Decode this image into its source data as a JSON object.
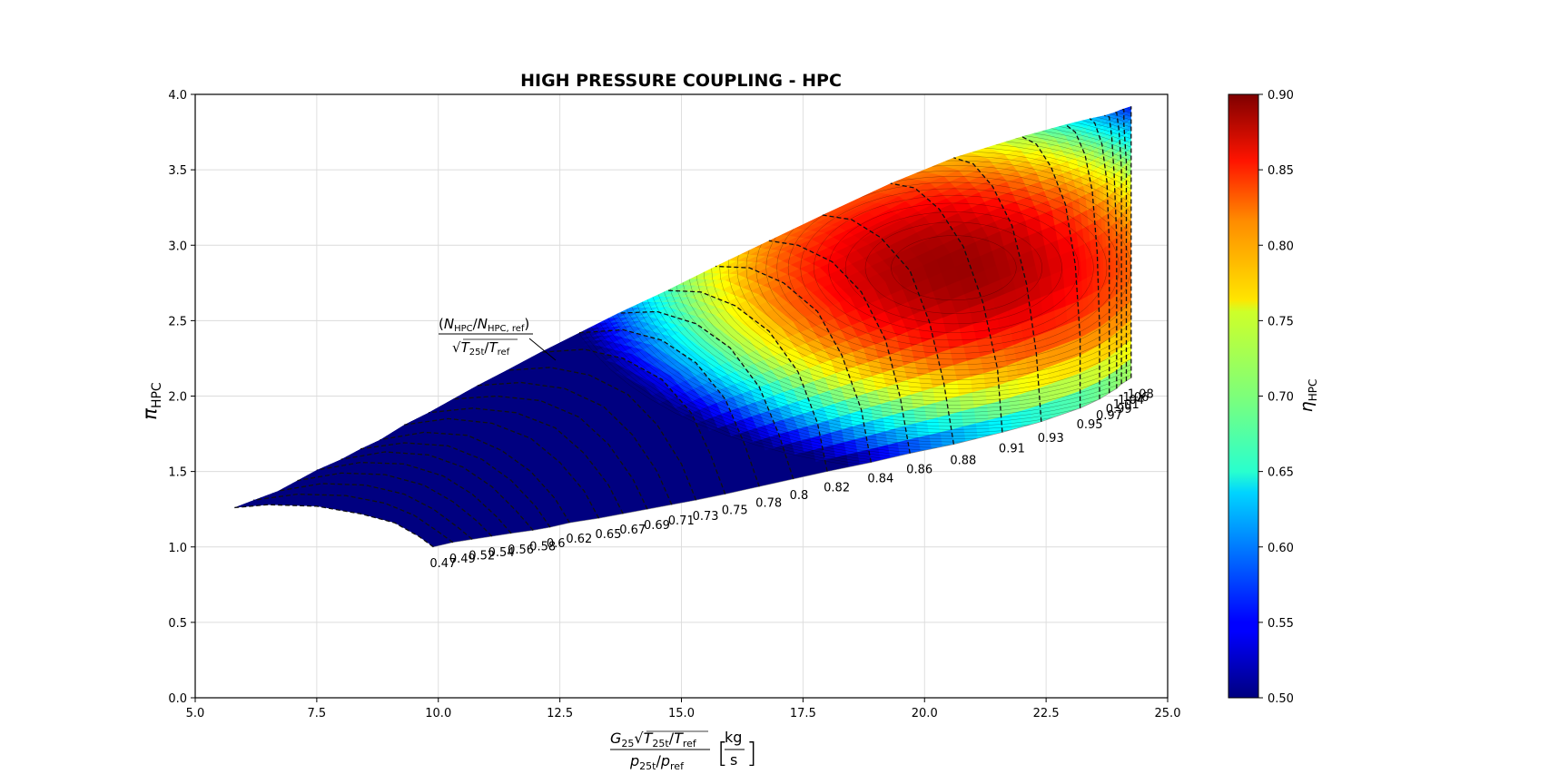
{
  "chart_data": {
    "type": "contour",
    "title": "HIGH PRESSURE COUPLING - HPC",
    "xlabel": {
      "numerator": "G25√(T25t/Tref)",
      "denominator": "p25t/pref",
      "unit_numerator": "kg",
      "unit_denominator": "s"
    },
    "ylabel": "πHPC",
    "xlim": [
      5.0,
      25.0
    ],
    "ylim": [
      0.0,
      4.0
    ],
    "x_ticks": [
      "5.0",
      "7.5",
      "10.0",
      "12.5",
      "15.0",
      "17.5",
      "20.0",
      "22.5",
      "25.0"
    ],
    "y_ticks": [
      "0.0",
      "0.5",
      "1.0",
      "1.5",
      "2.0",
      "2.5",
      "3.0",
      "3.5",
      "4.0"
    ],
    "grid": true,
    "speed_line_annotation": {
      "numerator": "(NHPC/NHPC,ref)",
      "denominator": "√(T25t/Tref)"
    },
    "speed_lines": [
      {
        "label": "0.47",
        "x": [
          9.9,
          9.6,
          9.1,
          8.4,
          7.5,
          6.5,
          5.8
        ],
        "y": [
          1.0,
          1.07,
          1.16,
          1.22,
          1.27,
          1.28,
          1.26
        ]
      },
      {
        "label": "0.49",
        "x": [
          10.3,
          10.0,
          9.5,
          8.9,
          8.1,
          7.1,
          6.2
        ],
        "y": [
          1.03,
          1.1,
          1.21,
          1.29,
          1.34,
          1.35,
          1.31
        ]
      },
      {
        "label": "0.52",
        "x": [
          10.7,
          10.4,
          9.9,
          9.3,
          8.5,
          7.6,
          6.7
        ],
        "y": [
          1.05,
          1.13,
          1.25,
          1.35,
          1.41,
          1.42,
          1.37
        ]
      },
      {
        "label": "0.54",
        "x": [
          11.1,
          10.8,
          10.3,
          9.7,
          8.9,
          8.0,
          7.1
        ],
        "y": [
          1.07,
          1.17,
          1.3,
          1.41,
          1.48,
          1.49,
          1.44
        ]
      },
      {
        "label": "0.56",
        "x": [
          11.5,
          11.2,
          10.7,
          10.1,
          9.3,
          8.4,
          7.5
        ],
        "y": [
          1.09,
          1.2,
          1.35,
          1.47,
          1.55,
          1.56,
          1.51
        ]
      },
      {
        "label": "0.58",
        "x": [
          11.95,
          11.6,
          11.1,
          10.5,
          9.8,
          8.9,
          8.0
        ],
        "y": [
          1.11,
          1.24,
          1.4,
          1.53,
          1.61,
          1.63,
          1.58
        ]
      },
      {
        "label": "0.6",
        "x": [
          12.3,
          12.0,
          11.5,
          10.9,
          10.2,
          9.3,
          8.4
        ],
        "y": [
          1.13,
          1.27,
          1.44,
          1.58,
          1.67,
          1.69,
          1.65
        ]
      },
      {
        "label": "0.62",
        "x": [
          12.7,
          12.4,
          11.9,
          11.3,
          10.6,
          9.7,
          8.8
        ],
        "y": [
          1.16,
          1.32,
          1.5,
          1.64,
          1.74,
          1.76,
          1.71
        ]
      },
      {
        "label": "0.65",
        "x": [
          13.3,
          13.0,
          12.5,
          11.9,
          11.1,
          10.2,
          9.3
        ],
        "y": [
          1.19,
          1.37,
          1.56,
          1.72,
          1.82,
          1.85,
          1.81
        ]
      },
      {
        "label": "0.67",
        "x": [
          13.8,
          13.5,
          13.0,
          12.4,
          11.6,
          10.7,
          9.8
        ],
        "y": [
          1.22,
          1.41,
          1.62,
          1.79,
          1.89,
          1.92,
          1.89
        ]
      },
      {
        "label": "0.69",
        "x": [
          14.3,
          14.0,
          13.5,
          12.9,
          12.1,
          11.2,
          10.3
        ],
        "y": [
          1.25,
          1.45,
          1.68,
          1.86,
          1.97,
          2.0,
          1.98
        ]
      },
      {
        "label": "0.71",
        "x": [
          14.8,
          14.5,
          14.0,
          13.4,
          12.6,
          11.7,
          10.8
        ],
        "y": [
          1.28,
          1.5,
          1.74,
          1.93,
          2.05,
          2.09,
          2.07
        ]
      },
      {
        "label": "0.73",
        "x": [
          15.3,
          15.0,
          14.5,
          13.9,
          13.1,
          12.3,
          11.4
        ],
        "y": [
          1.31,
          1.55,
          1.81,
          2.01,
          2.14,
          2.19,
          2.17
        ]
      },
      {
        "label": "0.75",
        "x": [
          15.9,
          15.6,
          15.2,
          14.6,
          13.8,
          13.0,
          12.1
        ],
        "y": [
          1.35,
          1.61,
          1.89,
          2.11,
          2.25,
          2.31,
          2.29
        ]
      },
      {
        "label": "0.78",
        "x": [
          16.6,
          16.3,
          15.9,
          15.3,
          14.6,
          13.8,
          12.9
        ],
        "y": [
          1.4,
          1.68,
          1.98,
          2.22,
          2.37,
          2.44,
          2.42
        ]
      },
      {
        "label": "0.8",
        "x": [
          17.3,
          17.0,
          16.6,
          16.0,
          15.3,
          14.5,
          13.7
        ],
        "y": [
          1.45,
          1.75,
          2.06,
          2.32,
          2.48,
          2.56,
          2.55
        ]
      },
      {
        "label": "0.82",
        "x": [
          18.0,
          17.8,
          17.4,
          16.8,
          16.1,
          15.4,
          14.7
        ],
        "y": [
          1.5,
          1.82,
          2.16,
          2.43,
          2.6,
          2.69,
          2.7
        ]
      },
      {
        "label": "0.84",
        "x": [
          18.9,
          18.7,
          18.3,
          17.8,
          17.1,
          16.4,
          15.7
        ],
        "y": [
          1.56,
          1.91,
          2.27,
          2.56,
          2.75,
          2.85,
          2.86
        ]
      },
      {
        "label": "0.86",
        "x": [
          19.7,
          19.5,
          19.2,
          18.7,
          18.1,
          17.4,
          16.8
        ],
        "y": [
          1.62,
          1.99,
          2.37,
          2.69,
          2.89,
          3.0,
          3.03
        ]
      },
      {
        "label": "0.88",
        "x": [
          20.6,
          20.4,
          20.1,
          19.7,
          19.1,
          18.5,
          17.9
        ],
        "y": [
          1.68,
          2.08,
          2.49,
          2.83,
          3.05,
          3.17,
          3.2
        ]
      },
      {
        "label": "0.91",
        "x": [
          21.6,
          21.5,
          21.2,
          20.8,
          20.3,
          19.8,
          19.3
        ],
        "y": [
          1.76,
          2.18,
          2.62,
          2.99,
          3.24,
          3.38,
          3.41
        ]
      },
      {
        "label": "0.93",
        "x": [
          22.4,
          22.3,
          22.1,
          21.8,
          21.4,
          21.0,
          20.6
        ],
        "y": [
          1.83,
          2.28,
          2.74,
          3.13,
          3.39,
          3.54,
          3.58
        ]
      },
      {
        "label": "0.95",
        "x": [
          23.2,
          23.2,
          23.1,
          22.9,
          22.6,
          22.3,
          22.0
        ],
        "y": [
          1.92,
          2.39,
          2.87,
          3.27,
          3.52,
          3.67,
          3.72
        ]
      },
      {
        "label": "0.97",
        "x": [
          23.6,
          23.6,
          23.55,
          23.45,
          23.3,
          23.1,
          22.9
        ],
        "y": [
          1.98,
          2.46,
          2.95,
          3.36,
          3.6,
          3.75,
          3.8
        ]
      },
      {
        "label": "0.99",
        "x": [
          23.8,
          23.8,
          23.8,
          23.75,
          23.65,
          23.5,
          23.4
        ],
        "y": [
          2.02,
          2.51,
          3.01,
          3.42,
          3.67,
          3.81,
          3.84
        ]
      },
      {
        "label": "1.01",
        "x": [
          23.95,
          23.95,
          23.95,
          23.9,
          23.85,
          23.8,
          23.7
        ],
        "y": [
          2.05,
          2.55,
          3.06,
          3.47,
          3.72,
          3.85,
          3.86
        ]
      },
      {
        "label": "1.04",
        "x": [
          24.05,
          24.05,
          24.05,
          24.05,
          24.0,
          23.95,
          23.9
        ],
        "y": [
          2.08,
          2.58,
          3.1,
          3.51,
          3.76,
          3.88,
          3.88
        ]
      },
      {
        "label": "1.06",
        "x": [
          24.15,
          24.15,
          24.15,
          24.15,
          24.1,
          24.1,
          24.05
        ],
        "y": [
          2.1,
          2.61,
          3.14,
          3.55,
          3.8,
          3.9,
          3.9
        ]
      },
      {
        "label": "1.08",
        "x": [
          24.25,
          24.25,
          24.25,
          24.25,
          24.25,
          24.25,
          24.25
        ],
        "y": [
          2.12,
          2.64,
          3.18,
          3.59,
          3.84,
          3.92,
          3.92
        ]
      }
    ],
    "efficiency_peak": {
      "x": 20.6,
      "y": 2.85,
      "value": 0.89
    },
    "colorbar": {
      "label": "ηHPC",
      "range": [
        0.5,
        0.9
      ],
      "ticks": [
        "0.50",
        "0.55",
        "0.60",
        "0.65",
        "0.70",
        "0.75",
        "0.80",
        "0.85",
        "0.90"
      ],
      "colormap": "jet"
    }
  }
}
